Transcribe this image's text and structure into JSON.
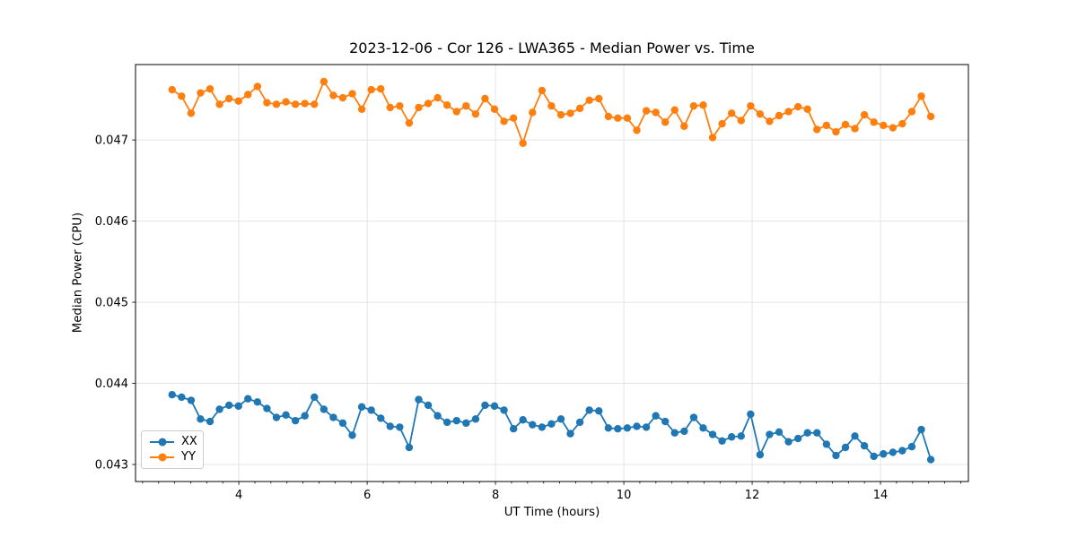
{
  "chart_data": {
    "type": "line",
    "title": "2023-12-06 - Cor 126 - LWA365 - Median Power vs. Time",
    "xlabel": "UT Time (hours)",
    "ylabel": "Median Power (CPU)",
    "xlim": [
      2.39,
      15.37
    ],
    "ylim": [
      0.04279,
      0.04793
    ],
    "grid": true,
    "legend_position": "lower left",
    "marker": "circle",
    "x_major_ticks": [
      4,
      6,
      8,
      10,
      12,
      14
    ],
    "x_major_tick_labels": [
      "4",
      "6",
      "8",
      "10",
      "12",
      "14"
    ],
    "x_minor_tick_step": 0.25,
    "y_ticks": [
      0.043,
      0.044,
      0.045,
      0.046,
      0.047
    ],
    "y_tick_labels": [
      "0.043",
      "0.044",
      "0.045",
      "0.046",
      "0.047"
    ],
    "x": [
      2.96,
      3.108,
      3.256,
      3.403,
      3.551,
      3.699,
      3.847,
      3.995,
      4.142,
      4.29,
      4.438,
      4.586,
      4.734,
      4.882,
      5.029,
      5.177,
      5.325,
      5.473,
      5.62,
      5.768,
      5.916,
      6.064,
      6.212,
      6.359,
      6.507,
      6.655,
      6.803,
      6.951,
      7.098,
      7.246,
      7.394,
      7.542,
      7.69,
      7.837,
      7.985,
      8.133,
      8.281,
      8.428,
      8.576,
      8.724,
      8.872,
      9.02,
      9.167,
      9.315,
      9.463,
      9.611,
      9.759,
      9.906,
      10.054,
      10.202,
      10.35,
      10.498,
      10.645,
      10.793,
      10.941,
      11.089,
      11.237,
      11.384,
      11.532,
      11.68,
      11.828,
      11.976,
      12.123,
      12.271,
      12.419,
      12.567,
      12.715,
      12.862,
      13.01,
      13.158,
      13.306,
      13.454,
      13.601,
      13.749,
      13.897,
      14.045,
      14.193,
      14.34,
      14.488,
      14.636,
      14.784
    ],
    "series": [
      {
        "name": "XX",
        "color": "#1f77b4",
        "values": [
          0.04386,
          0.04383,
          0.04379,
          0.04356,
          0.04353,
          0.04368,
          0.04373,
          0.04372,
          0.04381,
          0.04377,
          0.04369,
          0.04358,
          0.04361,
          0.04354,
          0.0436,
          0.04383,
          0.04368,
          0.04358,
          0.04351,
          0.04336,
          0.04371,
          0.04367,
          0.04357,
          0.04347,
          0.04346,
          0.04321,
          0.0438,
          0.04373,
          0.0436,
          0.04352,
          0.04354,
          0.04351,
          0.04356,
          0.04373,
          0.04372,
          0.04367,
          0.04344,
          0.04355,
          0.04349,
          0.04346,
          0.0435,
          0.04356,
          0.04338,
          0.04352,
          0.04367,
          0.04366,
          0.04345,
          0.04344,
          0.04345,
          0.04347,
          0.04346,
          0.0436,
          0.04353,
          0.04339,
          0.04341,
          0.04358,
          0.04345,
          0.04337,
          0.04329,
          0.04334,
          0.04335,
          0.04362,
          0.04312,
          0.04337,
          0.0434,
          0.04328,
          0.04332,
          0.04339,
          0.04339,
          0.04325,
          0.04311,
          0.04321,
          0.04335,
          0.04323,
          0.0431,
          0.04313,
          0.04315,
          0.04317,
          0.04322,
          0.04343,
          0.04306
        ]
      },
      {
        "name": "YY",
        "color": "#ff7f0e",
        "values": [
          0.04762,
          0.04754,
          0.04733,
          0.04758,
          0.04763,
          0.04744,
          0.04751,
          0.04748,
          0.04756,
          0.04766,
          0.04746,
          0.04744,
          0.04747,
          0.04744,
          0.04745,
          0.04744,
          0.04772,
          0.04755,
          0.04752,
          0.04757,
          0.04738,
          0.04762,
          0.04763,
          0.0474,
          0.04742,
          0.04721,
          0.0474,
          0.04745,
          0.04752,
          0.04743,
          0.04735,
          0.04742,
          0.04732,
          0.04751,
          0.04738,
          0.04723,
          0.04727,
          0.04696,
          0.04734,
          0.04761,
          0.04742,
          0.04731,
          0.04733,
          0.04739,
          0.04749,
          0.04751,
          0.04729,
          0.04727,
          0.04727,
          0.04712,
          0.04736,
          0.04734,
          0.04722,
          0.04737,
          0.04717,
          0.04742,
          0.04743,
          0.04703,
          0.0472,
          0.04733,
          0.04724,
          0.04742,
          0.04732,
          0.04723,
          0.0473,
          0.04735,
          0.04741,
          0.04738,
          0.04713,
          0.04718,
          0.0471,
          0.04719,
          0.04714,
          0.04731,
          0.04722,
          0.04718,
          0.04715,
          0.0472,
          0.04735,
          0.04754,
          0.04729
        ]
      }
    ]
  }
}
